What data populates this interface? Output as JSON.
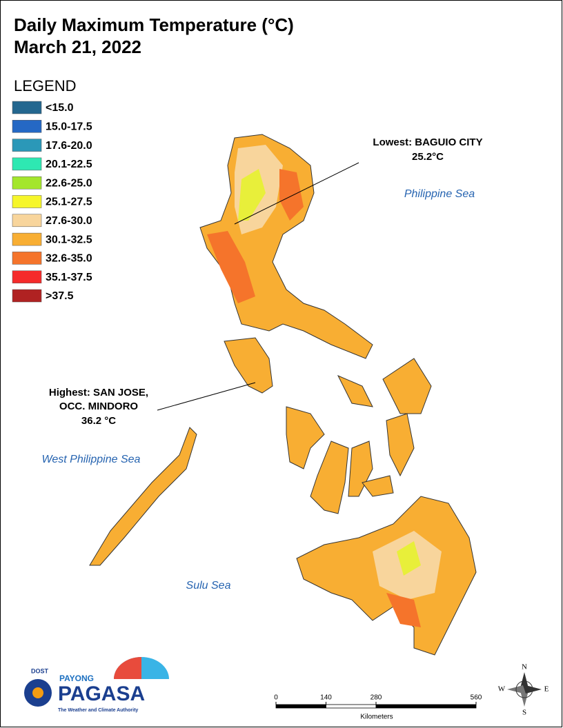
{
  "title": [
    "Daily Maximum Temperature (°C)",
    "March 21, 2022"
  ],
  "legend": {
    "title": "LEGEND",
    "items": [
      {
        "label": "<15.0",
        "color": "#24678f"
      },
      {
        "label": "15.0-17.5",
        "color": "#2568c4"
      },
      {
        "label": "17.6-20.0",
        "color": "#2b98b8"
      },
      {
        "label": "20.1-22.5",
        "color": "#2ee8b2"
      },
      {
        "label": "22.6-25.0",
        "color": "#a4e62c"
      },
      {
        "label": "25.1-27.5",
        "color": "#f6f62a"
      },
      {
        "label": "27.6-30.0",
        "color": "#f8d59c"
      },
      {
        "label": "30.1-32.5",
        "color": "#f8ae33"
      },
      {
        "label": "32.6-35.0",
        "color": "#f5742b"
      },
      {
        "label": "35.1-37.5",
        "color": "#f52b2b"
      },
      {
        "label": ">37.5",
        "color": "#b02222"
      }
    ]
  },
  "annotations": [
    {
      "lines": [
        "Lowest: BAGUIO CITY",
        "25.2°C"
      ]
    },
    {
      "lines": [
        "Highest: SAN JOSE,",
        "OCC. MINDORO",
        "36.2 °C"
      ]
    }
  ],
  "sea_labels": [
    "Philippine Sea",
    "West Philippine Sea",
    "Sulu Sea"
  ],
  "scale": {
    "ticks": [
      0,
      140,
      280,
      560
    ],
    "unit": "Kilometers"
  },
  "compass": [
    "N",
    "E",
    "S",
    "W"
  ],
  "logo": {
    "agency": "DOST",
    "brand_top": "PAYONG",
    "brand": "PAGASA",
    "tagline": "The Weather and Climate Authority"
  }
}
